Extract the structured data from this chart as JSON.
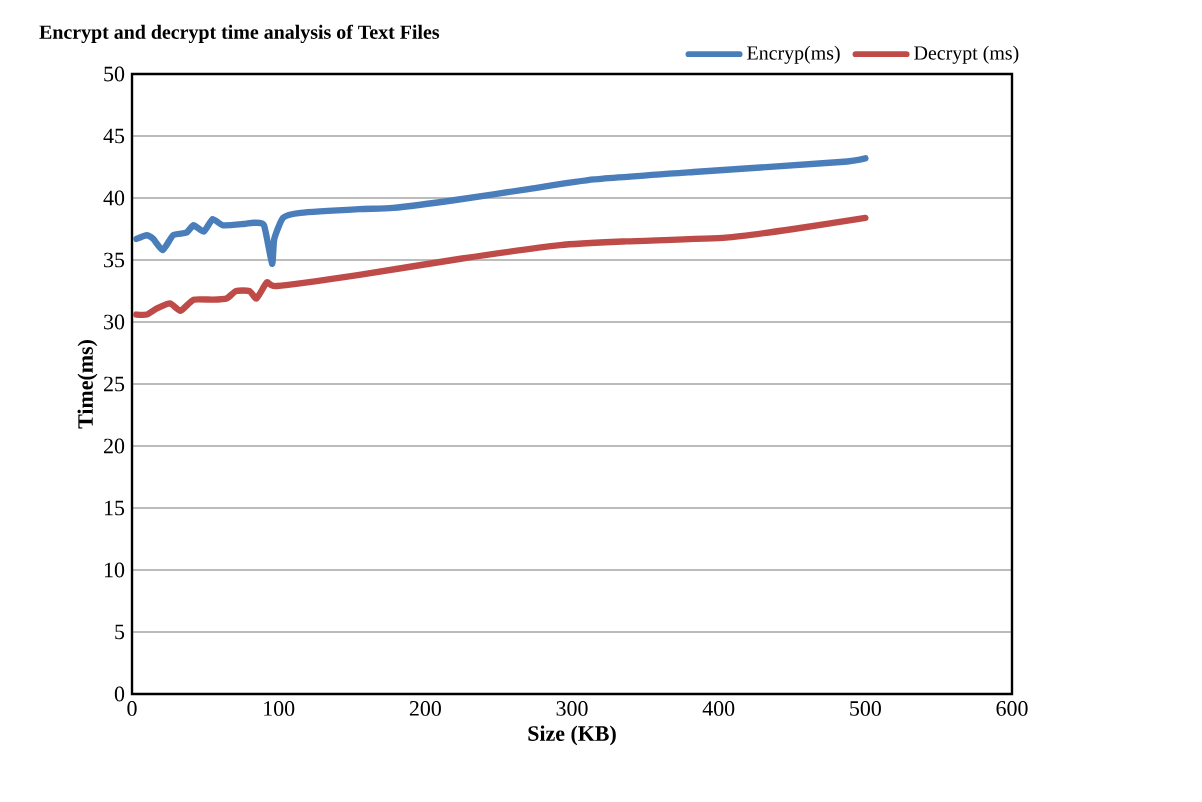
{
  "chart_data": {
    "type": "line",
    "title": "Encrypt and decrypt time analysis of Text Files",
    "xlabel": "Size (KB)",
    "ylabel": "Time(ms)",
    "xlim": [
      0,
      600
    ],
    "xticks": [
      0,
      100,
      200,
      300,
      400,
      500,
      600
    ],
    "ylim": [
      0,
      50
    ],
    "yticks": [
      0,
      5,
      10,
      15,
      20,
      25,
      30,
      35,
      40,
      45,
      50
    ],
    "grid": "y",
    "legend": "top right",
    "marker": "none",
    "line_style": "solid",
    "series": [
      {
        "name": "Encryp(ms)",
        "color": "#4a7ebb",
        "x": [
          3,
          10,
          14.5,
          21,
          28,
          37,
          42,
          49,
          55,
          62,
          76,
          83,
          90,
          95.5,
          97,
          103,
          115,
          155,
          178,
          224,
          269,
          315,
          383,
          483,
          500
        ],
        "values": [
          36.7,
          37.0,
          36.7,
          35.8,
          37.0,
          37.2,
          37.8,
          37.3,
          38.3,
          37.8,
          37.9,
          38.0,
          37.8,
          34.7,
          36.7,
          38.4,
          38.8,
          39.1,
          39.2,
          39.9,
          40.7,
          41.5,
          42.1,
          42.9,
          43.2
        ]
      },
      {
        "name": "Decrypt (ms)",
        "color": "#be4b48",
        "x": [
          3,
          10,
          17,
          26,
          33,
          42,
          55,
          64.5,
          71,
          80,
          85,
          92,
          98.6,
          155,
          224,
          292,
          337,
          405,
          451,
          500
        ],
        "values": [
          30.6,
          30.6,
          31.1,
          31.5,
          30.9,
          31.8,
          31.8,
          31.9,
          32.5,
          32.5,
          31.9,
          33.2,
          32.9,
          33.8,
          35.1,
          36.2,
          36.5,
          36.8,
          37.5,
          38.4
        ]
      }
    ]
  }
}
